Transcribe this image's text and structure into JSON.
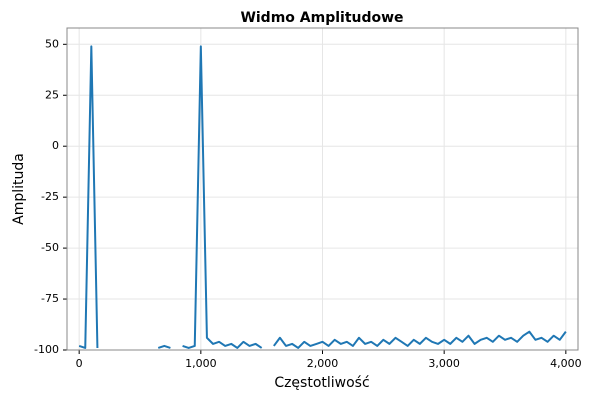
{
  "chart_data": {
    "type": "line",
    "title": "Widmo Amplitudowe",
    "xlabel": "Częstotliwość",
    "ylabel": "Amplituda",
    "x": [
      0,
      50,
      100,
      150,
      200,
      250,
      300,
      350,
      400,
      450,
      500,
      550,
      600,
      650,
      700,
      750,
      800,
      850,
      900,
      950,
      1000,
      1050,
      1100,
      1150,
      1200,
      1250,
      1300,
      1350,
      1400,
      1450,
      1500,
      1550,
      1600,
      1650,
      1700,
      1750,
      1800,
      1850,
      1900,
      1950,
      2000,
      2050,
      2100,
      2150,
      2200,
      2250,
      2300,
      2350,
      2400,
      2450,
      2500,
      2550,
      2600,
      2650,
      2700,
      2750,
      2800,
      2850,
      2900,
      2950,
      3000,
      3050,
      3100,
      3150,
      3200,
      3250,
      3300,
      3350,
      3400,
      3450,
      3500,
      3550,
      3600,
      3650,
      3700,
      3750,
      3800,
      3850,
      3900,
      3950,
      4000
    ],
    "values": [
      -98,
      -99,
      49,
      -99,
      null,
      null,
      null,
      -99,
      null,
      null,
      null,
      -99,
      null,
      -99,
      -98,
      -99,
      null,
      -98,
      -99,
      -98,
      49,
      -94,
      -97,
      -96,
      -98,
      -97,
      -99,
      -96,
      -98,
      -97,
      -99,
      null,
      -98,
      -94,
      -98,
      -97,
      -99,
      -96,
      -98,
      -97,
      -96,
      -98,
      -95,
      -97,
      -96,
      -98,
      -94,
      -97,
      -96,
      -98,
      -95,
      -97,
      -94,
      -96,
      -98,
      -95,
      -97,
      -94,
      -96,
      -97,
      -95,
      -97,
      -94,
      -96,
      -93,
      -97,
      -95,
      -94,
      -96,
      -93,
      -95,
      -94,
      -96,
      -93,
      -91,
      -95,
      -94,
      -96,
      -93,
      -95,
      -91
    ],
    "color": "#1f77b4",
    "xlim": [
      -100,
      4100
    ],
    "ylim": [
      -100,
      58
    ],
    "xticks": [
      0,
      {
        "value": 1000,
        "label": "1,000"
      },
      {
        "value": 2000,
        "label": "2,000"
      },
      {
        "value": 3000,
        "label": "3,000"
      },
      {
        "value": 4000,
        "label": "4,000"
      }
    ],
    "yticks": [
      50,
      25,
      0,
      -25,
      -50,
      -75,
      -100
    ],
    "grid": true
  }
}
